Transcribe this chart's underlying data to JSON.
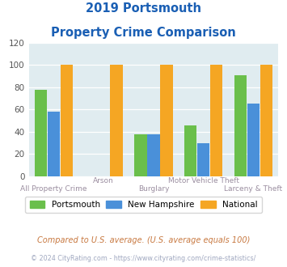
{
  "title_line1": "2019 Portsmouth",
  "title_line2": "Property Crime Comparison",
  "categories": [
    "All Property Crime",
    "Arson",
    "Burglary",
    "Motor Vehicle Theft",
    "Larceny & Theft"
  ],
  "portsmouth": [
    78,
    0,
    38,
    46,
    91
  ],
  "new_hampshire": [
    58,
    0,
    38,
    30,
    65
  ],
  "national": [
    100,
    100,
    100,
    100,
    100
  ],
  "portsmouth_color": "#6abf4b",
  "new_hampshire_color": "#4a90d9",
  "national_color": "#f5a623",
  "ylim": [
    0,
    120
  ],
  "yticks": [
    0,
    20,
    40,
    60,
    80,
    100,
    120
  ],
  "title_color": "#1a5fb4",
  "xlabel_color": "#9b8ea0",
  "legend_labels": [
    "Portsmouth",
    "New Hampshire",
    "National"
  ],
  "footnote1": "Compared to U.S. average. (U.S. average equals 100)",
  "footnote2": "© 2024 CityRating.com - https://www.cityrating.com/crime-statistics/",
  "footnote1_color": "#c87941",
  "footnote2_color": "#a0a8c0",
  "bg_color": "#ffffff",
  "plot_bg_color": "#e0ecf0"
}
